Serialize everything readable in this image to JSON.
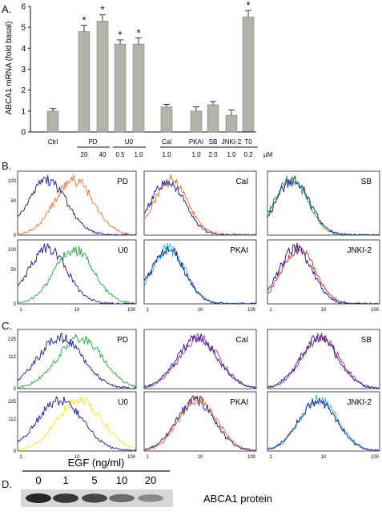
{
  "chart_data": [
    {
      "type": "bar",
      "panel_label": "A.",
      "categories": [
        "Ctrl",
        "PD",
        "PD",
        "U0",
        "U0",
        "Cal",
        "PKAI",
        "SB",
        "JNKI-2",
        "T0"
      ],
      "group_labels": [
        "Ctrl",
        "PD",
        "U0",
        "Cal",
        "PKAI",
        "SB",
        "JNKI-2",
        "T0"
      ],
      "doses": [
        "20",
        "40",
        "0.5",
        "1.0",
        "1.0",
        "1.0",
        "2.0",
        "1.0",
        "0.2"
      ],
      "dose_unit": "μM",
      "values": [
        1.0,
        4.8,
        5.3,
        4.2,
        4.2,
        1.2,
        1.0,
        1.3,
        0.8,
        5.5
      ],
      "errors": [
        0.12,
        0.3,
        0.3,
        0.2,
        0.3,
        0.12,
        0.2,
        0.15,
        0.25,
        0.3
      ],
      "significant": [
        false,
        true,
        true,
        true,
        true,
        false,
        false,
        false,
        false,
        true
      ],
      "significance_marker": "*",
      "ylabel": "ABCA1 mRNA (fold basal)",
      "ylim": [
        0,
        6
      ],
      "yticks": [
        "0",
        "1",
        "2",
        "3",
        "4",
        "5",
        "6"
      ],
      "bar_color": "#b3b3aa"
    },
    {
      "type": "line",
      "panel_label": "B.",
      "subpanels": [
        {
          "label": "PD",
          "control_color": "#2a2a9e",
          "treated_color": "#f07a3a",
          "control_peak_log": 0.5,
          "treated_peak_log": 0.95,
          "width": 0.33
        },
        {
          "label": "CaI",
          "control_color": "#2a2a9e",
          "treated_color": "#f07a3a",
          "control_peak_log": 0.42,
          "treated_peak_log": 0.48,
          "width": 0.3
        },
        {
          "label": "SB",
          "control_color": "#2a2a9e",
          "treated_color": "#2fb04a",
          "control_peak_log": 0.45,
          "treated_peak_log": 0.42,
          "width": 0.3
        },
        {
          "label": "U0",
          "control_color": "#2a2a9e",
          "treated_color": "#2fb04a",
          "control_peak_log": 0.5,
          "treated_peak_log": 0.95,
          "width": 0.33
        },
        {
          "label": "PKAI",
          "control_color": "#2a2a9e",
          "treated_color": "#3ab8c8",
          "control_peak_log": 0.42,
          "treated_peak_log": 0.44,
          "width": 0.3
        },
        {
          "label": "JNKI-2",
          "control_color": "#2a2a9e",
          "treated_color": "#d23a3a",
          "control_peak_log": 0.5,
          "treated_peak_log": 0.55,
          "width": 0.3
        }
      ],
      "left_ticks": [
        "100",
        "50",
        "0"
      ],
      "bottom_ticks": [
        "1",
        "10",
        "100"
      ]
    },
    {
      "type": "line",
      "panel_label": "C.",
      "subpanels": [
        {
          "label": "PD",
          "control_color": "#2a2a9e",
          "treated_color": "#2fb04a",
          "control_peak_log": 0.72,
          "treated_peak_log": 1.05,
          "width": 0.38
        },
        {
          "label": "CaI",
          "control_color": "#2a2a9e",
          "treated_color": "#b03ab0",
          "control_peak_log": 0.95,
          "treated_peak_log": 0.98,
          "width": 0.36
        },
        {
          "label": "SB",
          "control_color": "#2a2a9e",
          "treated_color": "#c0306a",
          "control_peak_log": 0.92,
          "treated_peak_log": 0.95,
          "width": 0.34
        },
        {
          "label": "U0",
          "control_color": "#2a2a9e",
          "treated_color": "#f0e63a",
          "control_peak_log": 0.72,
          "treated_peak_log": 1.05,
          "width": 0.38
        },
        {
          "label": "PKAI",
          "control_color": "#2a2a9e",
          "treated_color": "#f07a3a",
          "control_peak_log": 0.92,
          "treated_peak_log": 0.96,
          "width": 0.34
        },
        {
          "label": "JNKI-2",
          "control_color": "#2a2a9e",
          "treated_color": "#3ab8c8",
          "control_peak_log": 0.9,
          "treated_peak_log": 0.92,
          "width": 0.34
        }
      ],
      "left_ticks": [
        "225",
        "112",
        "0"
      ],
      "bottom_ticks": [
        "1",
        "10",
        "100"
      ]
    },
    {
      "type": "table",
      "panel_label": "D.",
      "title": "EGF (ng/ml)",
      "lanes": [
        "0",
        "1",
        "5",
        "10",
        "20"
      ],
      "band_intensity": [
        1.0,
        0.9,
        0.8,
        0.55,
        0.35
      ],
      "band_label": "ABCA1 protein"
    }
  ]
}
